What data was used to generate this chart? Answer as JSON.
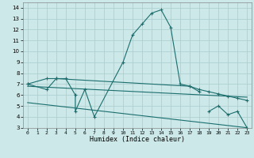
{
  "xlabel": "Humidex (Indice chaleur)",
  "bg_color": "#cde8e8",
  "grid_color": "#a8cccc",
  "line_color": "#1a6e6e",
  "xlim": [
    -0.5,
    23.5
  ],
  "ylim": [
    3,
    14.5
  ],
  "xticks": [
    0,
    1,
    2,
    3,
    4,
    5,
    6,
    7,
    8,
    9,
    10,
    11,
    12,
    13,
    14,
    15,
    16,
    17,
    18,
    19,
    20,
    21,
    22,
    23
  ],
  "yticks": [
    3,
    4,
    5,
    6,
    7,
    8,
    9,
    10,
    11,
    12,
    13,
    14
  ],
  "curve1_x": [
    0,
    2,
    3,
    3,
    4,
    5,
    5,
    6,
    7,
    10,
    11,
    12,
    13,
    14,
    15,
    16,
    17,
    18
  ],
  "curve1_y": [
    7,
    6.5,
    7.5,
    7.5,
    7.5,
    6.0,
    4.5,
    6.5,
    4.0,
    9.0,
    11.5,
    12.5,
    13.5,
    13.8,
    12.2,
    7.0,
    6.8,
    6.3
  ],
  "curve2_x": [
    0,
    2,
    3,
    17,
    18,
    19,
    20,
    21,
    22,
    23
  ],
  "curve2_y": [
    7.0,
    7.5,
    7.5,
    6.8,
    6.5,
    6.3,
    6.1,
    5.9,
    5.7,
    5.5
  ],
  "curve3_x": [
    0,
    23
  ],
  "curve3_y": [
    6.8,
    5.8
  ],
  "curve4_x": [
    0,
    23
  ],
  "curve4_y": [
    5.3,
    3.0
  ],
  "curve5_x": [
    19,
    20,
    21,
    22,
    23
  ],
  "curve5_y": [
    4.5,
    5.0,
    4.2,
    4.5,
    3.0
  ],
  "marker": "+",
  "marker_size": 3,
  "linewidth": 0.8
}
